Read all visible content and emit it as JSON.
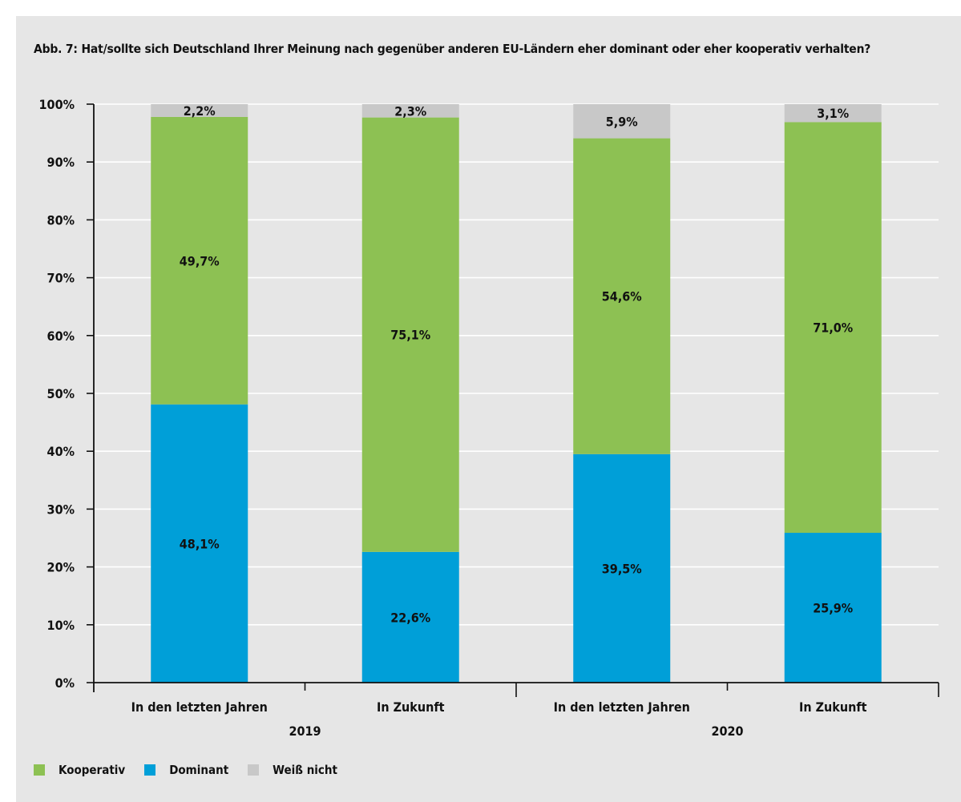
{
  "chart_data": {
    "type": "bar",
    "stacked": true,
    "title": "Abb. 7: Hat/sollte sich Deutschland Ihrer Meinung nach gegenüber anderen EU-Ländern eher dominant oder eher kooperativ verhalten?",
    "categories": [
      "In den letzten Jahren",
      "In Zukunft",
      "In den letzten Jahren",
      "In Zukunft"
    ],
    "groups": [
      {
        "label": "2019",
        "categories": [
          0,
          1
        ]
      },
      {
        "label": "2020",
        "categories": [
          2,
          3
        ]
      }
    ],
    "series": [
      {
        "name": "Dominant",
        "color": "#009fd8",
        "values": [
          48.1,
          22.6,
          39.5,
          25.9
        ],
        "labels": [
          "48,1%",
          "22,6%",
          "39,5%",
          "25,9%"
        ]
      },
      {
        "name": "Kooperativ",
        "color": "#8dc153",
        "values": [
          49.7,
          75.1,
          54.6,
          71.0
        ],
        "labels": [
          "49,7%",
          "75,1%",
          "54,6%",
          "71,0%"
        ]
      },
      {
        "name": "Weiß nicht",
        "color": "#c8c8c8",
        "values": [
          2.2,
          2.3,
          5.9,
          3.1
        ],
        "labels": [
          "2,2%",
          "2,3%",
          "5,9%",
          "3,1%"
        ]
      }
    ],
    "yticks": [
      "0%",
      "10%",
      "20%",
      "30%",
      "40%",
      "50%",
      "60%",
      "70%",
      "80%",
      "90%",
      "100%"
    ],
    "ylim": [
      0,
      100
    ],
    "grid": true,
    "legend": {
      "position": "bottom-left",
      "items": [
        "Kooperativ",
        "Dominant",
        "Weiß nicht"
      ]
    }
  }
}
